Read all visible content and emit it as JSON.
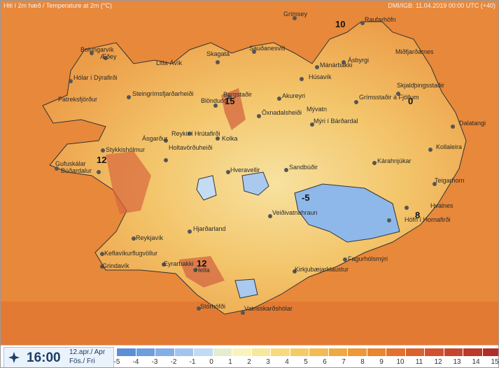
{
  "header": {
    "title": "Hiti í 2m hæð / Temperature at 2m (°C)",
    "model_info": "DMI/IGB: 11.04.2019 00:00 UTC (+40)"
  },
  "places": [
    "Grímsey",
    "Raufarhöfn",
    "Bolungarvík",
    "Æðey",
    "Sauðanesviti",
    "Mánárbakki",
    "Ásbyrgi",
    "Miðfjarðarnes",
    "Litla-Ávík",
    "Skagatá",
    "Húsavík",
    "Hólar í Dýrafirði",
    "Steingrímsfjarðarheiði",
    "Bergstaðir",
    "Akureyri",
    "Grímsstaðir á Fjöllum",
    "Skjaldþingsstaðir",
    "Patreksfjörður",
    "Blönduós",
    "Öxnadalsheiði",
    "Mývatn",
    "Ásgarður",
    "Reykir í Hrútafirði",
    "Mýri í Bárðardal",
    "Dalatangi",
    "Kolka",
    "Stykkishólmur",
    "Holtavörðuheiði",
    "Kollaleira",
    "Gufuskálar",
    "Búðardalur",
    "Kárahnjúkar",
    "Hveravellir",
    "Sandbúðir",
    "Teigarhorn",
    "Veiðivatnahraun",
    "Hvalnes",
    "Höfn í Hornafirði",
    "Hjarðarland",
    "Reykjavík",
    "Keflavíkurflugvöllur",
    "Fagurhólsmýri",
    "Grindavík",
    "Eyrarbakki",
    "Hella",
    "Kirkjubæjarklaustur",
    "Stórhöfði",
    "Vatnsskarðshólar"
  ],
  "temp_labels": [
    "10",
    "15",
    "0",
    "12",
    "-5",
    "8",
    "12"
  ],
  "footer": {
    "time": "16:00",
    "date_line1": "12.apr./ Apr",
    "date_line2": "Fös./ Fri"
  },
  "legend": {
    "ticks": [
      "-5",
      "-4",
      "-3",
      "-2",
      "-1",
      "0",
      "1",
      "2",
      "3",
      "4",
      "5",
      "6",
      "7",
      "8",
      "9",
      "10",
      "11",
      "12",
      "13",
      "14",
      "15"
    ],
    "colors": [
      "#5b8fd6",
      "#6f9ede",
      "#86aee6",
      "#a2c4ee",
      "#c2daf3",
      "#e6edcf",
      "#fbf3b8",
      "#f9e79a",
      "#f7da7f",
      "#f5cb66",
      "#f3bb50",
      "#f0a940",
      "#ee9838",
      "#ea8532",
      "#e4722f",
      "#dd612e",
      "#d3522d",
      "#c8452c",
      "#bc392b",
      "#b02e2a"
    ]
  }
}
